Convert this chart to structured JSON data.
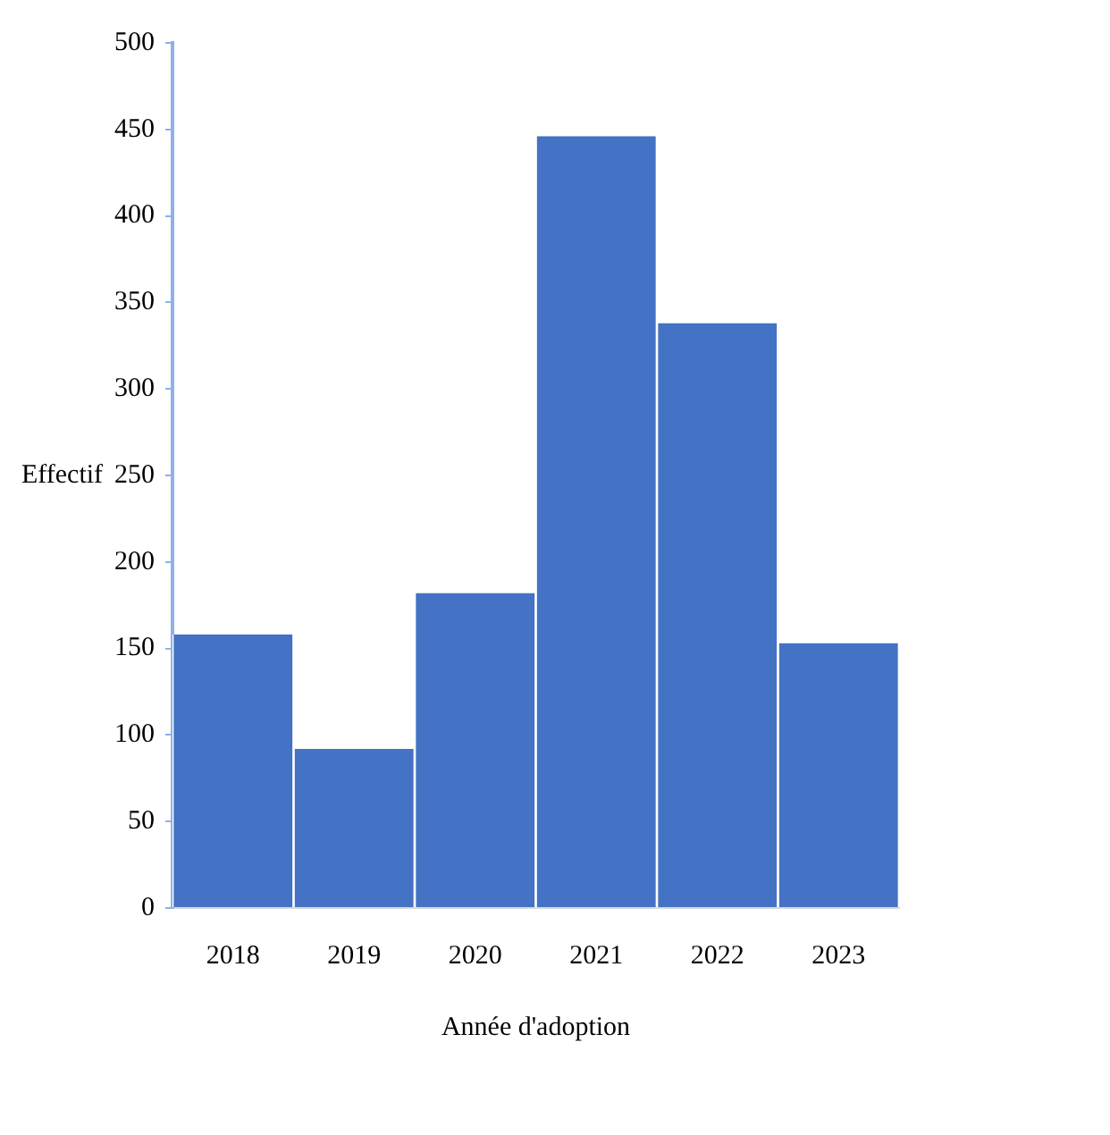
{
  "chart_data": {
    "type": "bar",
    "xlabel": "Année d'adoption",
    "ylabel": "Effectif",
    "categories": [
      "2018",
      "2019",
      "2020",
      "2021",
      "2022",
      "2023"
    ],
    "values": [
      158,
      92,
      182,
      446,
      338,
      153
    ],
    "color": "#4472c4",
    "ylim": [
      0,
      500
    ],
    "yticks": [
      0,
      50,
      100,
      150,
      200,
      250,
      300,
      350,
      400,
      450,
      500
    ],
    "grid": false,
    "legend": false
  }
}
